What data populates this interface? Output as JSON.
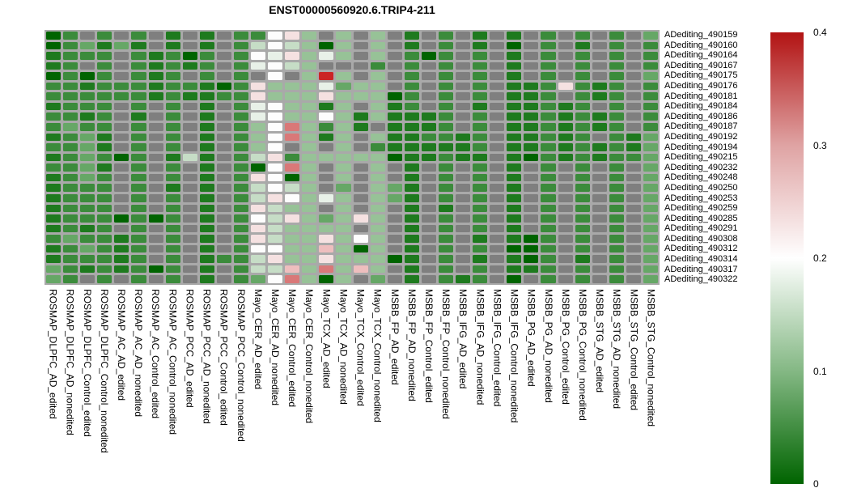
{
  "figure": {
    "title": "ENST00000560920.6.TRIP4-211"
  },
  "chart_data": {
    "type": "heatmap",
    "title": "ENST00000560920.6.TRIP4-211",
    "rows": [
      "ADediting_490159",
      "ADediting_490160",
      "ADediting_490164",
      "ADediting_490167",
      "ADediting_490175",
      "ADediting_490176",
      "ADediting_490181",
      "ADediting_490184",
      "ADediting_490186",
      "ADediting_490187",
      "ADediting_490192",
      "ADediting_490194",
      "ADediting_490215",
      "ADediting_490232",
      "ADediting_490248",
      "ADediting_490250",
      "ADediting_490253",
      "ADediting_490259",
      "ADediting_490285",
      "ADediting_490291",
      "ADediting_490308",
      "ADediting_490312",
      "ADediting_490314",
      "ADediting_490317",
      "ADediting_490322"
    ],
    "columns": [
      "ROSMAP_DLPFC_AD_edited",
      "ROSMAP_DLPFC_AD_nonedited",
      "ROSMAP_DLPFC_Control_edited",
      "ROSMAP_DLPFC_Control_nonedited",
      "ROSMAP_AC_AD_edited",
      "ROSMAP_AC_AD_nonedited",
      "ROSMAP_AC_Control_edited",
      "ROSMAP_AC_Control_nonedited",
      "ROSMAP_PCC_AD_edited",
      "ROSMAP_PCC_AD_nonedited",
      "ROSMAP_PCC_Control_edited",
      "ROSMAP_PCC_Control_nonedited",
      "Mayo_CER_AD_edited",
      "Mayo_CER_AD_nonedited",
      "Mayo_CER_Control_edited",
      "Mayo_CER_Control_nonedited",
      "Mayo_TCX_AD_edited",
      "Mayo_TCX_AD_nonedited",
      "Mayo_TCX_Control_edited",
      "Mayo_TCX_Control_nonedited",
      "MSBB_FP_AD_edited",
      "MSBB_FP_AD_nonedited",
      "MSBB_FP_Control_edited",
      "MSBB_FP_Control_nonedited",
      "MSBB_IFG_AD_edited",
      "MSBB_IFG_AD_nonedited",
      "MSBB_IFG_Control_edited",
      "MSBB_IFG_Control_nonedited",
      "MSBB_PG_AD_edited",
      "MSBB_PG_AD_nonedited",
      "MSBB_PG_Control_edited",
      "MSBB_PG_Control_nonedited",
      "MSBB_STG_AD_edited",
      "MSBB_STG_AD_nonedited",
      "MSBB_STG_Control_edited",
      "MSBB_STG_Control_nonedited"
    ],
    "palette": {
      "D": "#006400",
      "d": "#1e7a1e",
      "G": "#3b8b3b",
      "g": "#66a766",
      "L": "#97c297",
      "p": "#c6ddc6",
      "P": "#e8f1e8",
      "W": "#fdfdfd",
      "k": "#f5e1e1",
      "K": "#eebebe",
      "S": "#d97878",
      "R": "#cb2525",
      "N": "#7f7f7f"
    },
    "code_values": {
      "D": 0.01,
      "d": 0.04,
      "G": 0.07,
      "g": 0.1,
      "L": 0.13,
      "p": 0.16,
      "P": 0.18,
      "W": 0.2,
      "k": 0.22,
      "K": 0.25,
      "S": 0.28,
      "R": 0.37,
      "N": "NA"
    },
    "cells": [
      "DGNGNGNdNdNGGWkLNLNLNdNGNdNdNGNGNGNg",
      "DGgdgdNdNdNGpWpLDLNLNdNGNdNDNGNdNGNG",
      "dGGGNGdGDGNGWPkLPLNLNGDGNGNdNGNGNGNG",
      "dGNGNGdGdGNGPWpLNNNGNGNGNGNdNGNGNGNG",
      "DGDGNGdGNGNGNWNLRLNLNGNGNGNdNGNGNGNg",
      "GGdGGGdGGdDGkLLLPgLLNGNGNGNddGkGdGNG",
      "GGGGGGdGddGGkLLLkLLLDGNGNGNddGNGdGNG",
      "dGGGNGNGNdNGPWLLdLNLdGNGNdNddGdGNGNG",
      "GGdGNdNGNdNGPWLLWLdLdddGNGNddGdGdGNG",
      "GgGGNGNGNdNGLWSLGLdNdddGNGNddGdGdGNG",
      "dGgdNGNGNdNGLWSLdLNLddGGdGNddGdGNGdg",
      "GGgdNGNGNdNGLWNLNLNGdddddGNddGdGdGdg",
      "dGgGDGNdpdNGpkGLLLLLDddGddNdDGdGdGGg",
      "GGgdNGNGNdNGDWSLNLNLNdNGNGNdNGNGNGNg",
      "dGgGNGNGNdNGkWDLNLNLNdNGNGNdNGNGNGNg",
      "dGGGNGNdNdNGpWpLNgNLgdNGNGNdNGNGNGNg",
      "dGGGNGNGNdNGpkWLPLNLgdNGNGNdNGNGNGNg",
      "dGGGNGNGNdNGkpLLNLNLNdNdNGNdNGNGNGNg",
      "dGGGDGDGNdNGWpkLgLkLNdNGNGNdNGNGNGNg",
      "dGdGNGNGNdNGkpLLLLNLNdNGNGNdNGNGNGNg",
      "GgGGdGNGNdNGkpLLkLWLNdNGNdNdDGNGNGNg",
      "dGgGdGNGNdNGWWLLKLDLNdNGNGNDDGNGNGNg",
      "dGGGdGNGNdGGpkLLkLLLDdNGNdNdDGNdNGNg",
      "gGdGdGDGNdNGppKLSLKLNdNGNGNddGNGNGNg",
      "gGNGNGNGNdNGgWSLDLNgNdNGdGNDNGNGNGNg"
    ],
    "colorbar": {
      "min": 0,
      "max": 0.4,
      "ticks": [
        "0.4",
        "0.3",
        "0.2",
        "0.1",
        "0"
      ],
      "gradient_top_to_bottom": [
        "#b21313",
        "#dfa3a3",
        "#ffffff",
        "#84b884",
        "#006400"
      ]
    },
    "na_color": "#7f7f7f",
    "grid_line_color": "#a9a9a9",
    "legend_position": "right"
  }
}
